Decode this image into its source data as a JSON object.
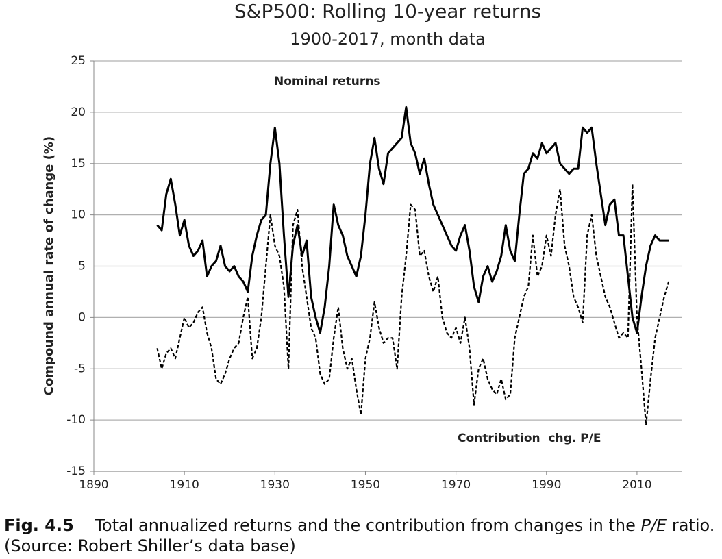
{
  "chart_data": {
    "type": "line",
    "title": "S&P500: Rolling 10-year returns",
    "subtitle": "1900-2017, month data",
    "y_label": "Compound annual rate of change (%)",
    "annotations": [
      "Nominal returns",
      "Contribution  chg. P/E"
    ],
    "x": [
      1904,
      1905,
      1906,
      1907,
      1908,
      1909,
      1910,
      1911,
      1912,
      1913,
      1914,
      1915,
      1916,
      1917,
      1918,
      1919,
      1920,
      1921,
      1922,
      1923,
      1924,
      1925,
      1926,
      1927,
      1928,
      1929,
      1930,
      1931,
      1932,
      1933,
      1934,
      1935,
      1936,
      1937,
      1938,
      1939,
      1940,
      1941,
      1942,
      1943,
      1944,
      1945,
      1946,
      1947,
      1948,
      1949,
      1950,
      1951,
      1952,
      1953,
      1954,
      1955,
      1956,
      1957,
      1958,
      1959,
      1960,
      1961,
      1962,
      1963,
      1964,
      1965,
      1966,
      1967,
      1968,
      1969,
      1970,
      1971,
      1972,
      1973,
      1974,
      1975,
      1976,
      1977,
      1978,
      1979,
      1980,
      1981,
      1982,
      1983,
      1984,
      1985,
      1986,
      1987,
      1988,
      1989,
      1990,
      1991,
      1992,
      1993,
      1994,
      1995,
      1996,
      1997,
      1998,
      1999,
      2000,
      2001,
      2002,
      2003,
      2004,
      2005,
      2006,
      2007,
      2008,
      2009,
      2010,
      2011,
      2012,
      2013,
      2014,
      2015,
      2016,
      2017
    ],
    "series": [
      {
        "name": "Nominal returns",
        "color": "#000000",
        "style": "solid",
        "values": [
          9,
          8.5,
          12,
          13.5,
          11,
          8,
          9.5,
          7,
          6,
          6.5,
          7.5,
          4,
          5,
          5.5,
          7,
          5,
          4.5,
          5,
          4,
          3.5,
          2.5,
          6,
          8,
          9.5,
          10,
          15,
          18.5,
          15,
          8,
          2,
          7,
          9,
          6,
          7.5,
          2,
          0,
          -1.5,
          1,
          5,
          11,
          9,
          8,
          6,
          5,
          4,
          6,
          10,
          15,
          17.5,
          14.5,
          13,
          16,
          16.5,
          17,
          17.5,
          20.5,
          17,
          16,
          14,
          15.5,
          13,
          11,
          10,
          9,
          8,
          7,
          6.5,
          8,
          9,
          6.5,
          3,
          1.5,
          4,
          5,
          3.5,
          4.5,
          6,
          9,
          6.5,
          5.5,
          10,
          14,
          14.5,
          16,
          15.5,
          17,
          16,
          16.5,
          17,
          15,
          14.5,
          14,
          14.5,
          14.5,
          18.5,
          18,
          18.5,
          15,
          12,
          9,
          11,
          11.5,
          8,
          8,
          4,
          0,
          -1.5,
          2,
          5,
          7,
          8,
          7.5,
          7.5,
          7.5
        ]
      },
      {
        "name": "Contribution  chg. P/E",
        "color": "#000000",
        "style": "dashed",
        "values": [
          -3,
          -5,
          -3.5,
          -3,
          -4,
          -2,
          0,
          -1,
          -0.5,
          0.5,
          1,
          -1.5,
          -3,
          -6,
          -6.5,
          -5.5,
          -4,
          -3,
          -2.5,
          0,
          2,
          -4,
          -3,
          0,
          5,
          10,
          7,
          6,
          3,
          -5,
          9,
          10.5,
          5,
          2,
          -1,
          -2,
          -5.5,
          -6.5,
          -6,
          -2,
          1,
          -3,
          -5,
          -4,
          -7,
          -9.5,
          -4,
          -2,
          1.5,
          -1,
          -2.5,
          -2,
          -2,
          -5,
          2,
          6,
          11,
          10.5,
          6,
          6.5,
          4,
          2.5,
          4,
          0,
          -1.5,
          -2,
          -1,
          -2.5,
          0,
          -3,
          -8.5,
          -5,
          -4,
          -6,
          -7,
          -7.5,
          -6,
          -8,
          -7.5,
          -2,
          0,
          2,
          3,
          8,
          4,
          5,
          8,
          6,
          10,
          12.5,
          7,
          5,
          2,
          1,
          -0.5,
          8,
          10,
          6,
          4,
          2,
          1,
          -0.5,
          -2,
          -1.5,
          -2,
          13,
          0,
          -5,
          -10.5,
          -6,
          -2,
          0,
          2,
          3.5
        ]
      }
    ],
    "xlim": [
      1890,
      2020
    ],
    "xticks": [
      1890,
      1910,
      1930,
      1950,
      1970,
      1990,
      2010
    ],
    "ylim": [
      -15,
      25
    ],
    "yticks": [
      -15,
      -10,
      -5,
      0,
      5,
      10,
      15,
      20,
      25
    ],
    "grid": true
  },
  "caption": {
    "label": "Fig. 4.5",
    "text_before": "Total annualized returns and the contribution from changes in the ",
    "italic": "P/E",
    "text_after": " ratio.",
    "source": "(Source: Robert Shiller’s data base)"
  }
}
